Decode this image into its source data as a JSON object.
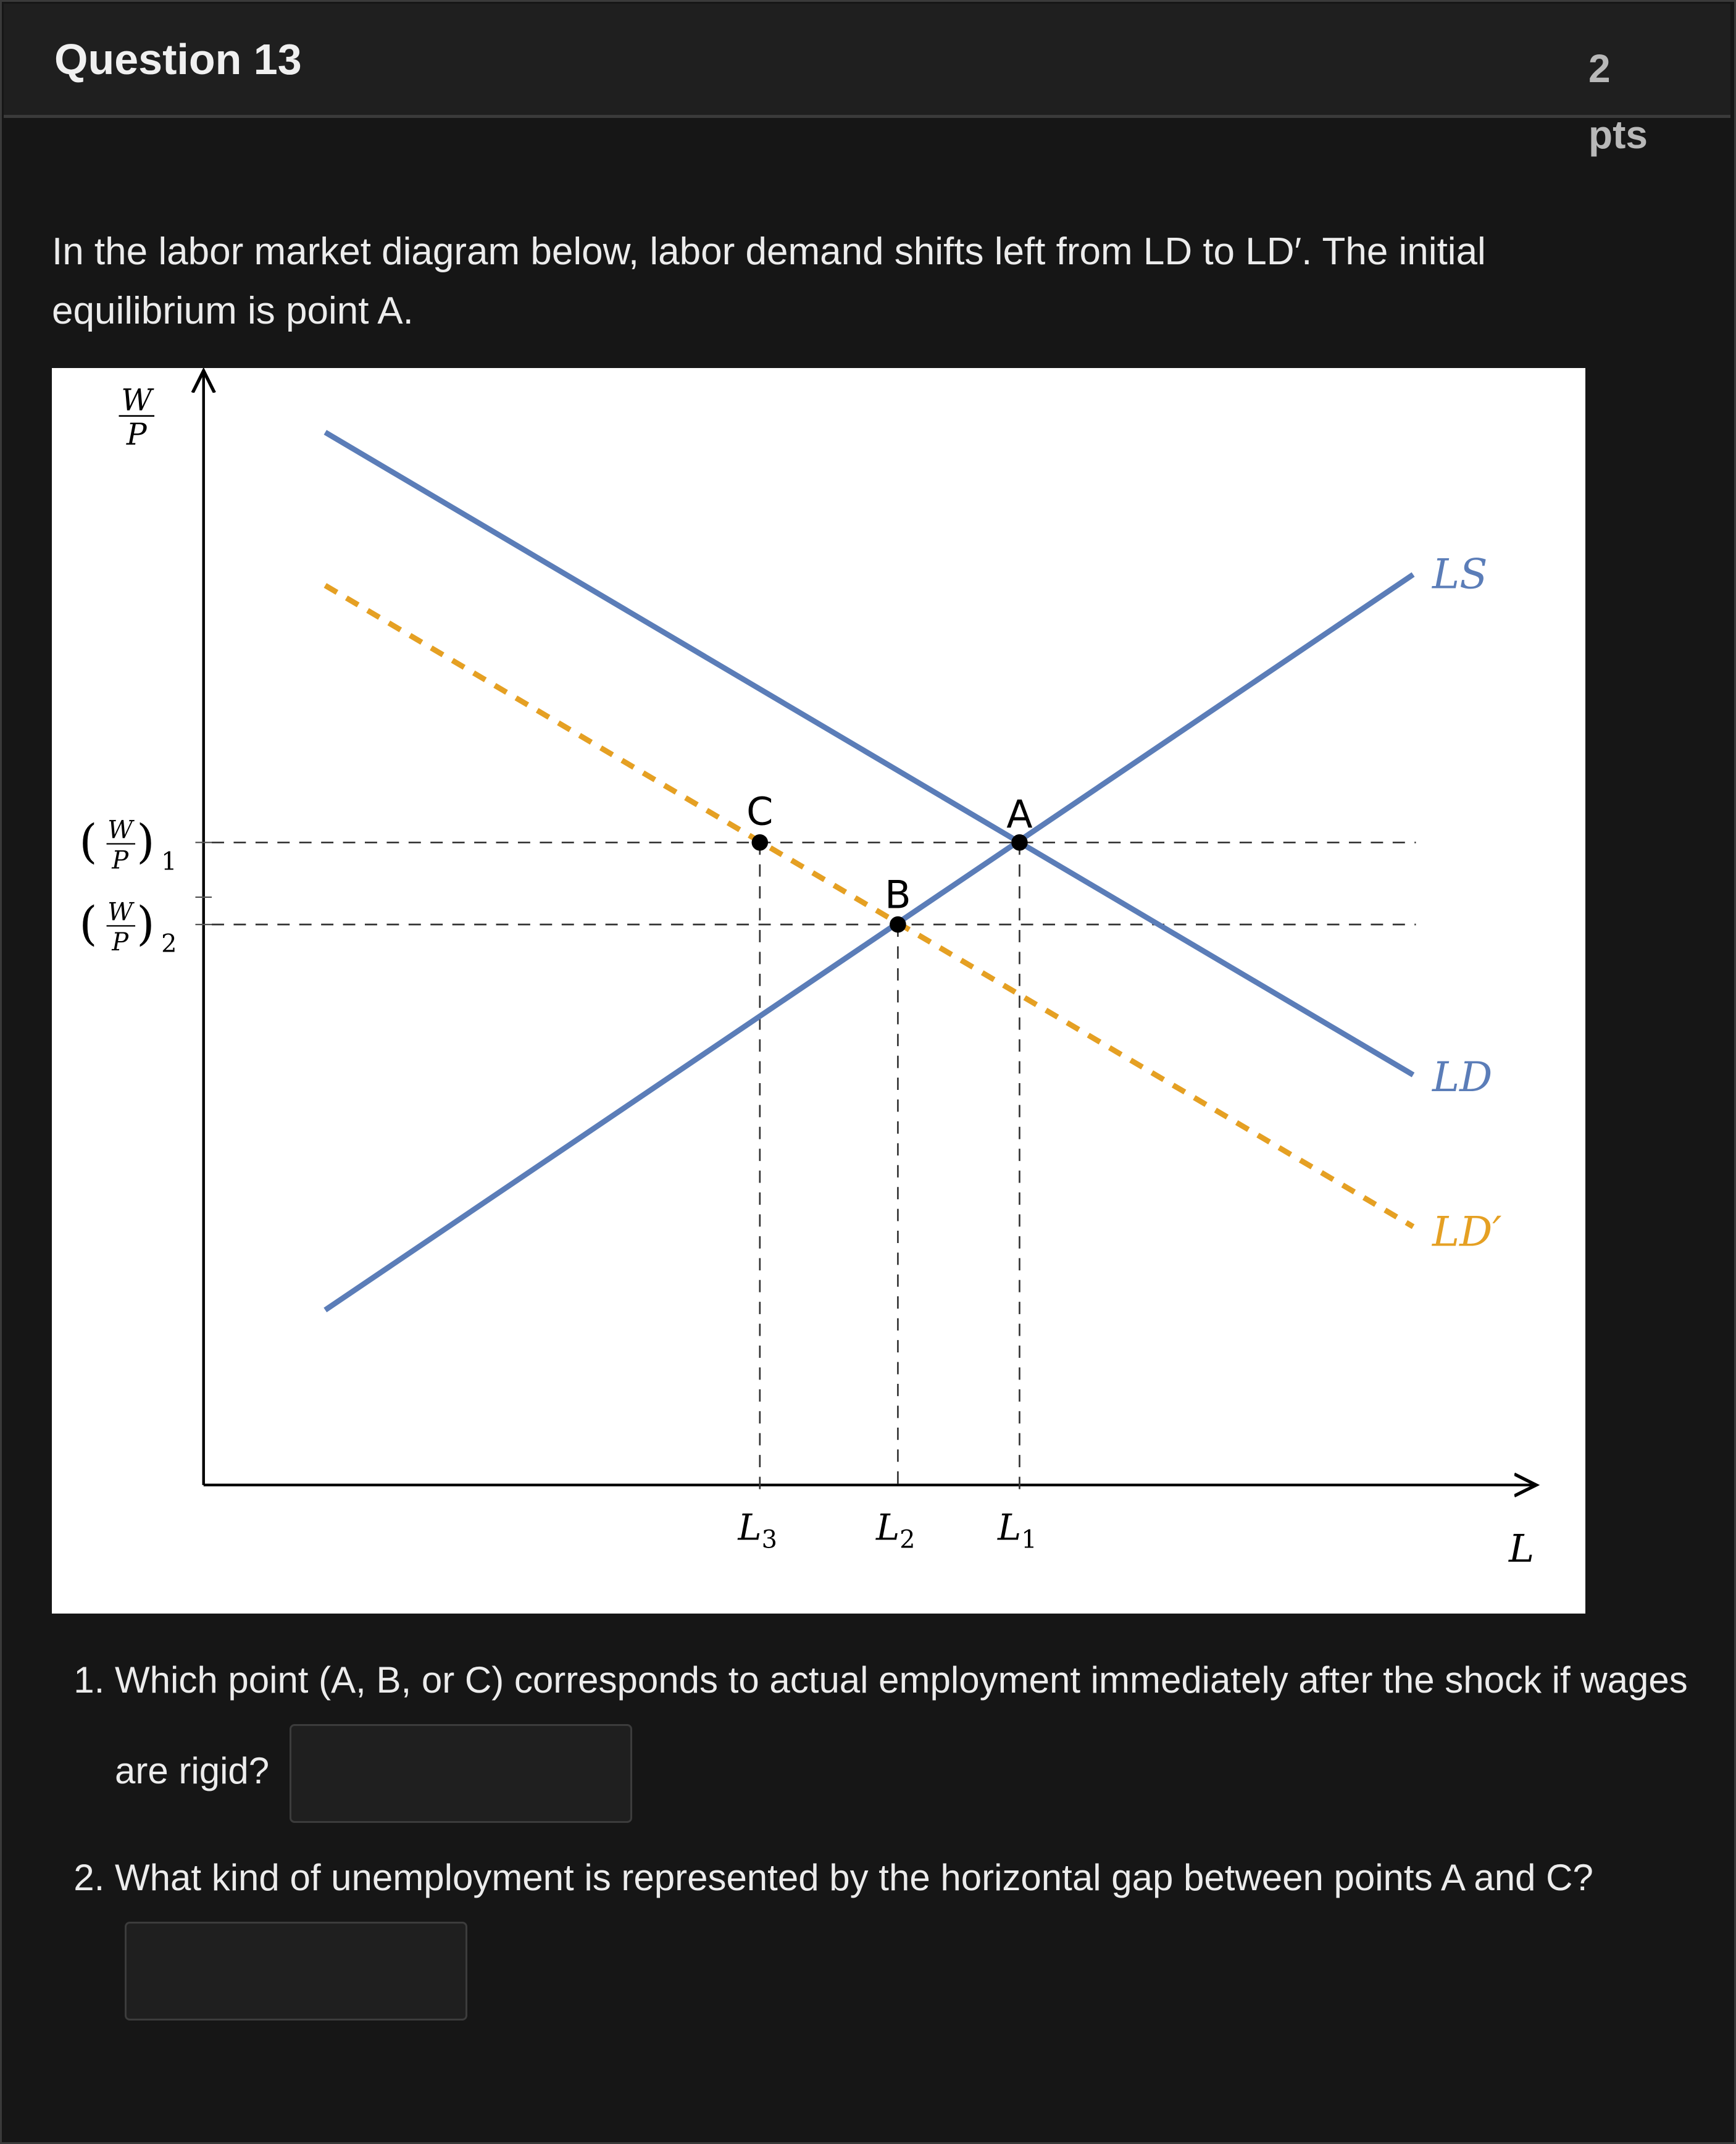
{
  "header": {
    "title": "Question 13",
    "points_value": "2",
    "points_unit": "pts"
  },
  "prompt": "In the labor market diagram below, labor demand shifts left from LD to LD′. The initial equilibrium is point A.",
  "diagram": {
    "y_axis_label": {
      "num": "W",
      "den": "P"
    },
    "y_ticks": [
      {
        "num": "W",
        "den": "P",
        "sub": "1"
      },
      {
        "num": "W",
        "den": "P",
        "sub": "2"
      }
    ],
    "x_axis_label": "L",
    "x_ticks": [
      {
        "base": "L",
        "sub": "3"
      },
      {
        "base": "L",
        "sub": "2"
      },
      {
        "base": "L",
        "sub": "1"
      }
    ],
    "curves": [
      {
        "name": "LS",
        "color": "#5b7db8",
        "style": "solid"
      },
      {
        "name": "LD",
        "color": "#5b7db8",
        "style": "solid"
      },
      {
        "name": "LD′",
        "color": "#e5a023",
        "style": "dashed"
      }
    ],
    "points": [
      "A",
      "B",
      "C"
    ]
  },
  "questions": [
    {
      "number": "1.",
      "text": "Which point (A, B, or C) corresponds to actual employment immediately after the shock if wages are rigid?",
      "answer": ""
    },
    {
      "number": "2.",
      "text": "What kind of unemployment is represented by the horizontal gap between points A and C?",
      "answer": ""
    }
  ]
}
